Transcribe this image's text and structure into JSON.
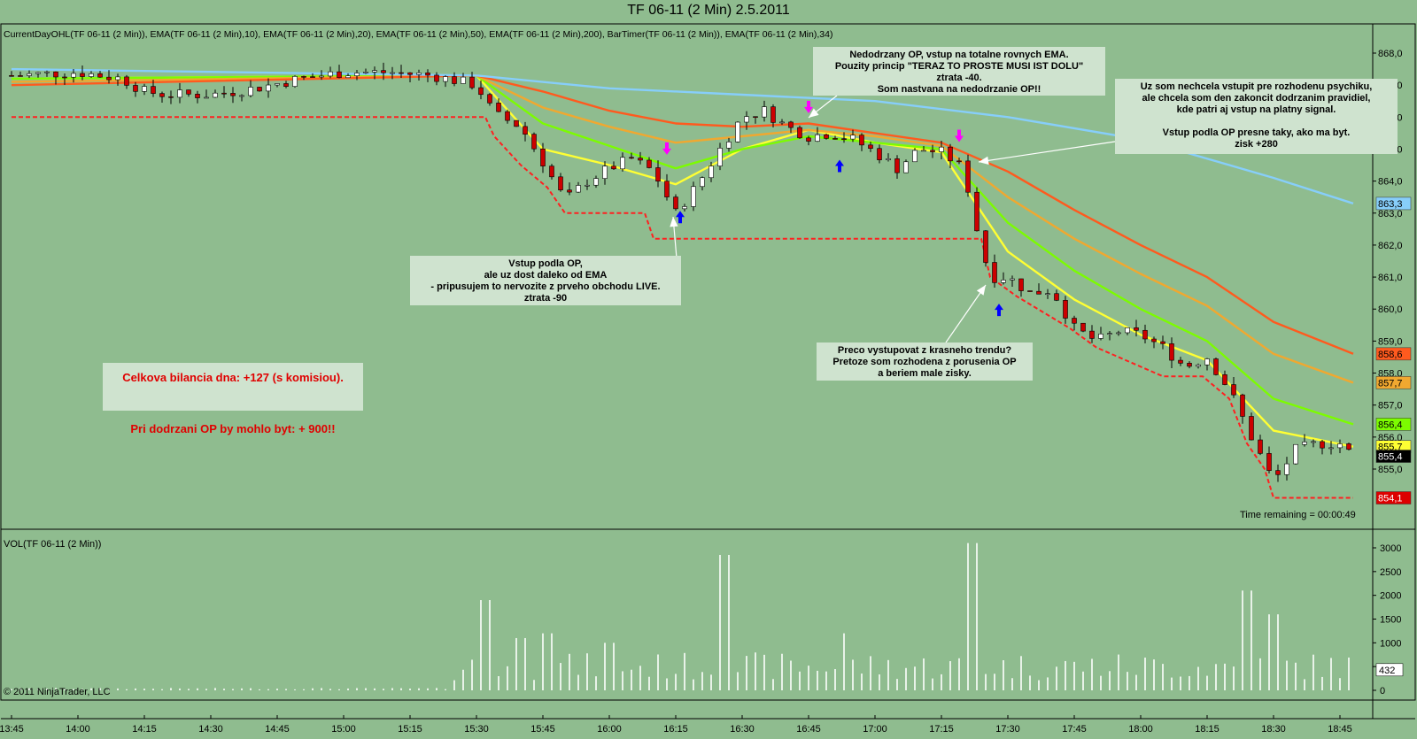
{
  "window": {
    "title": "TF 06-11 (2 Min)  2.5.2011",
    "indicators_label": "CurrentDayOHL(TF 06-11 (2 Min)), EMA(TF 06-11 (2 Min),10), EMA(TF 06-11 (2 Min),20), EMA(TF 06-11 (2 Min),50), EMA(TF 06-11 (2 Min),200), BarTimer(TF 06-11 (2 Min)), EMA(TF 06-11 (2 Min),34)",
    "volume_label": "VOL(TF 06-11 (2 Min))",
    "copyright": "© 2011 NinjaTrader, LLC",
    "time_remaining": "Time remaining = 00:00:49"
  },
  "annotations": {
    "top_center": "Nedodrzany OP, vstup na totalne rovnych EMA.\nPouzity princip \"TERAZ TO PROSTE MUSI IST DOLU\"\nztrata -40.\nSom nastvana na nedodrzanie OP!!",
    "top_right": "Uz som nechcela vstupit pre rozhodenu psychiku,\nale chcela som den zakoncit dodrzanim pravidiel,\nkde patri aj vstup na platny signal.\n\nVstup podla OP presne taky, ako ma byt.\nzisk +280",
    "middle_left": "Vstup podla OP,\nale uz dost daleko od EMA\n- pripusujem to nervozite z prveho obchodu LIVE.\nztrata -90",
    "bottom_center": "Preco vystupovat z krasneho trendu?\nPretoze som rozhodena z porusenia OP\na beriem male zisky.",
    "summary": "Celkova bilancia dna: +127 (s komisiou).\n\nPri dodrzani OP by mohlo byt: + 900!!"
  },
  "colors": {
    "background": "#8fbc8f",
    "up_candle": "#ffffff",
    "down_candle": "#cc0000",
    "ema10": "#ffff33",
    "ema20": "#7cfc00",
    "ema34": "#f0a830",
    "ema50": "#ff5a1e",
    "ema200": "#87cefa",
    "day_low": "#ff2020",
    "buy_arrow": "#0000ff",
    "sell_arrow": "#ff00ff"
  },
  "chart_data": [
    {
      "type": "candlestick",
      "title": "TF 06-11 (2 Min)  2.5.2011",
      "x_ticks": [
        "13:45",
        "14:00",
        "14:15",
        "14:30",
        "14:45",
        "15:00",
        "15:15",
        "15:30",
        "15:45",
        "16:00",
        "16:15",
        "16:30",
        "16:45",
        "17:00",
        "17:15",
        "17:30",
        "17:45",
        "18:00",
        "18:15",
        "18:30",
        "18:45"
      ],
      "y_ticks": [
        "868,0",
        "867,0",
        "866,0",
        "865,0",
        "864,0",
        "863,0",
        "862,0",
        "861,0",
        "860,0",
        "859,0",
        "858,0",
        "857,0",
        "856,0",
        "855,0"
      ],
      "ylim": [
        854.0,
        868.4
      ],
      "price_markers": [
        {
          "label": "863,3",
          "value": 863.3,
          "color": "#87cefa"
        },
        {
          "label": "858,6",
          "value": 858.6,
          "color": "#ff5a1e"
        },
        {
          "label": "857,7",
          "value": 857.7,
          "color": "#f0a830"
        },
        {
          "label": "856,4",
          "value": 856.4,
          "color": "#7cfc00"
        },
        {
          "label": "855,7",
          "value": 855.7,
          "color": "#ffff33"
        },
        {
          "label": "855,4",
          "value": 855.4,
          "color": "#000000"
        },
        {
          "label": "854,1",
          "value": 854.1,
          "color": "#dd0000"
        }
      ],
      "close_points": [
        {
          "t": "13:45",
          "v": 867.3
        },
        {
          "t": "14:00",
          "v": 867.4
        },
        {
          "t": "14:10",
          "v": 867.2
        },
        {
          "t": "14:15",
          "v": 866.8
        },
        {
          "t": "14:20",
          "v": 866.7
        },
        {
          "t": "14:30",
          "v": 866.7
        },
        {
          "t": "14:40",
          "v": 866.9
        },
        {
          "t": "14:50",
          "v": 867.2
        },
        {
          "t": "15:00",
          "v": 867.4
        },
        {
          "t": "15:10",
          "v": 867.4
        },
        {
          "t": "15:20",
          "v": 867.3
        },
        {
          "t": "15:30",
          "v": 867.0
        },
        {
          "t": "15:34",
          "v": 866.1
        },
        {
          "t": "15:40",
          "v": 865.7
        },
        {
          "t": "15:45",
          "v": 864.6
        },
        {
          "t": "15:50",
          "v": 863.4
        },
        {
          "t": "15:55",
          "v": 864.0
        },
        {
          "t": "16:00",
          "v": 864.4
        },
        {
          "t": "16:05",
          "v": 864.7
        },
        {
          "t": "16:10",
          "v": 864.3
        },
        {
          "t": "16:15",
          "v": 863.0
        },
        {
          "t": "16:20",
          "v": 863.9
        },
        {
          "t": "16:25",
          "v": 865.0
        },
        {
          "t": "16:30",
          "v": 866.0
        },
        {
          "t": "16:35",
          "v": 866.2
        },
        {
          "t": "16:40",
          "v": 865.7
        },
        {
          "t": "16:45",
          "v": 865.4
        },
        {
          "t": "16:50",
          "v": 865.5
        },
        {
          "t": "16:55",
          "v": 865.3
        },
        {
          "t": "17:00",
          "v": 864.9
        },
        {
          "t": "17:05",
          "v": 864.4
        },
        {
          "t": "17:10",
          "v": 865.0
        },
        {
          "t": "17:15",
          "v": 864.9
        },
        {
          "t": "17:20",
          "v": 864.4
        },
        {
          "t": "17:23",
          "v": 862.5
        },
        {
          "t": "17:26",
          "v": 861.0
        },
        {
          "t": "17:30",
          "v": 861.0
        },
        {
          "t": "17:35",
          "v": 860.5
        },
        {
          "t": "17:40",
          "v": 860.6
        },
        {
          "t": "17:45",
          "v": 859.4
        },
        {
          "t": "17:50",
          "v": 859.0
        },
        {
          "t": "17:55",
          "v": 859.3
        },
        {
          "t": "18:00",
          "v": 859.2
        },
        {
          "t": "18:05",
          "v": 858.8
        },
        {
          "t": "18:10",
          "v": 858.2
        },
        {
          "t": "18:15",
          "v": 858.5
        },
        {
          "t": "18:20",
          "v": 857.5
        },
        {
          "t": "18:25",
          "v": 856.0
        },
        {
          "t": "18:30",
          "v": 854.6
        },
        {
          "t": "18:35",
          "v": 855.6
        },
        {
          "t": "18:40",
          "v": 855.8
        },
        {
          "t": "18:45",
          "v": 855.8
        },
        {
          "t": "18:48",
          "v": 855.4
        }
      ],
      "series": [
        {
          "name": "EMA(TF 06-11 (2 Min),10)",
          "color": "#ffff33",
          "points": [
            {
              "t": "13:45",
              "v": 867.2
            },
            {
              "t": "15:30",
              "v": 867.3
            },
            {
              "t": "15:45",
              "v": 865.0
            },
            {
              "t": "16:00",
              "v": 864.5
            },
            {
              "t": "16:15",
              "v": 863.9
            },
            {
              "t": "16:30",
              "v": 865.0
            },
            {
              "t": "16:45",
              "v": 865.6
            },
            {
              "t": "17:00",
              "v": 865.2
            },
            {
              "t": "17:15",
              "v": 864.9
            },
            {
              "t": "17:30",
              "v": 861.8
            },
            {
              "t": "17:45",
              "v": 860.3
            },
            {
              "t": "18:00",
              "v": 859.2
            },
            {
              "t": "18:15",
              "v": 858.4
            },
            {
              "t": "18:30",
              "v": 856.2
            },
            {
              "t": "18:48",
              "v": 855.7
            }
          ]
        },
        {
          "name": "EMA(TF 06-11 (2 Min),20)",
          "color": "#7cfc00",
          "points": [
            {
              "t": "13:45",
              "v": 867.2
            },
            {
              "t": "15:30",
              "v": 867.3
            },
            {
              "t": "15:45",
              "v": 865.8
            },
            {
              "t": "16:00",
              "v": 865.1
            },
            {
              "t": "16:15",
              "v": 864.4
            },
            {
              "t": "16:30",
              "v": 865.0
            },
            {
              "t": "16:45",
              "v": 865.4
            },
            {
              "t": "17:00",
              "v": 865.2
            },
            {
              "t": "17:15",
              "v": 865.0
            },
            {
              "t": "17:30",
              "v": 862.7
            },
            {
              "t": "17:45",
              "v": 861.2
            },
            {
              "t": "18:00",
              "v": 860.0
            },
            {
              "t": "18:15",
              "v": 859.0
            },
            {
              "t": "18:30",
              "v": 857.2
            },
            {
              "t": "18:48",
              "v": 856.4
            }
          ]
        },
        {
          "name": "EMA(TF 06-11 (2 Min),34)",
          "color": "#f0a830",
          "points": [
            {
              "t": "13:45",
              "v": 867.1
            },
            {
              "t": "15:30",
              "v": 867.3
            },
            {
              "t": "15:45",
              "v": 866.3
            },
            {
              "t": "16:00",
              "v": 865.7
            },
            {
              "t": "16:15",
              "v": 865.2
            },
            {
              "t": "16:30",
              "v": 865.4
            },
            {
              "t": "16:45",
              "v": 865.6
            },
            {
              "t": "17:00",
              "v": 865.4
            },
            {
              "t": "17:15",
              "v": 865.1
            },
            {
              "t": "17:30",
              "v": 863.5
            },
            {
              "t": "17:45",
              "v": 862.2
            },
            {
              "t": "18:00",
              "v": 861.1
            },
            {
              "t": "18:15",
              "v": 860.1
            },
            {
              "t": "18:30",
              "v": 858.6
            },
            {
              "t": "18:48",
              "v": 857.7
            }
          ]
        },
        {
          "name": "EMA(TF 06-11 (2 Min),50)",
          "color": "#ff5a1e",
          "points": [
            {
              "t": "13:45",
              "v": 867.0
            },
            {
              "t": "15:30",
              "v": 867.3
            },
            {
              "t": "15:45",
              "v": 866.8
            },
            {
              "t": "16:00",
              "v": 866.2
            },
            {
              "t": "16:15",
              "v": 865.8
            },
            {
              "t": "16:30",
              "v": 865.7
            },
            {
              "t": "16:45",
              "v": 865.8
            },
            {
              "t": "17:00",
              "v": 865.5
            },
            {
              "t": "17:15",
              "v": 865.2
            },
            {
              "t": "17:30",
              "v": 864.3
            },
            {
              "t": "17:45",
              "v": 863.1
            },
            {
              "t": "18:00",
              "v": 862.0
            },
            {
              "t": "18:15",
              "v": 861.0
            },
            {
              "t": "18:30",
              "v": 859.6
            },
            {
              "t": "18:48",
              "v": 858.6
            }
          ]
        },
        {
          "name": "EMA(TF 06-11 (2 Min),200)",
          "color": "#87cefa",
          "points": [
            {
              "t": "13:45",
              "v": 867.5
            },
            {
              "t": "15:30",
              "v": 867.3
            },
            {
              "t": "16:00",
              "v": 866.9
            },
            {
              "t": "16:30",
              "v": 866.7
            },
            {
              "t": "17:00",
              "v": 866.5
            },
            {
              "t": "17:30",
              "v": 866.0
            },
            {
              "t": "18:00",
              "v": 865.3
            },
            {
              "t": "18:30",
              "v": 864.1
            },
            {
              "t": "18:48",
              "v": 863.3
            }
          ]
        },
        {
          "name": "CurrentDayOHL low",
          "color": "#ff2020",
          "points": [
            {
              "t": "13:45",
              "v": 866.0
            },
            {
              "t": "15:32",
              "v": 866.0
            },
            {
              "t": "15:34",
              "v": 865.4
            },
            {
              "t": "15:40",
              "v": 864.5
            },
            {
              "t": "15:46",
              "v": 863.8
            },
            {
              "t": "15:50",
              "v": 863.0
            },
            {
              "t": "16:08",
              "v": 863.0
            },
            {
              "t": "16:10",
              "v": 862.2
            },
            {
              "t": "17:24",
              "v": 862.2
            },
            {
              "t": "17:26",
              "v": 861.0
            },
            {
              "t": "17:32",
              "v": 860.4
            },
            {
              "t": "17:44",
              "v": 859.4
            },
            {
              "t": "17:50",
              "v": 858.8
            },
            {
              "t": "18:05",
              "v": 857.9
            },
            {
              "t": "18:14",
              "v": 857.9
            },
            {
              "t": "18:20",
              "v": 857.2
            },
            {
              "t": "18:24",
              "v": 855.8
            },
            {
              "t": "18:28",
              "v": 855.0
            },
            {
              "t": "18:30",
              "v": 854.1
            },
            {
              "t": "18:48",
              "v": 854.1
            }
          ]
        }
      ],
      "buy_signals": [
        {
          "t": "16:16",
          "v": 863.4
        },
        {
          "t": "16:52",
          "v": 865.0
        },
        {
          "t": "17:28",
          "v": 860.5
        }
      ],
      "sell_signals": [
        {
          "t": "16:13",
          "v": 864.6
        },
        {
          "t": "16:45",
          "v": 865.9
        },
        {
          "t": "17:19",
          "v": 865.0
        }
      ]
    },
    {
      "type": "bar",
      "title": "VOL(TF 06-11 (2 Min))",
      "y_ticks": [
        0,
        500,
        1000,
        1500,
        2000,
        2500,
        3000
      ],
      "ylim": [
        0,
        3200
      ],
      "last_value_label": "432",
      "spikes": [
        {
          "t": "15:32",
          "v": 1900
        },
        {
          "t": "15:40",
          "v": 1100
        },
        {
          "t": "15:46",
          "v": 1200
        },
        {
          "t": "16:00",
          "v": 1000
        },
        {
          "t": "16:26",
          "v": 2850
        },
        {
          "t": "16:53",
          "v": 1200
        },
        {
          "t": "17:22",
          "v": 3100
        },
        {
          "t": "18:24",
          "v": 2100
        },
        {
          "t": "18:30",
          "v": 1600
        }
      ]
    }
  ]
}
